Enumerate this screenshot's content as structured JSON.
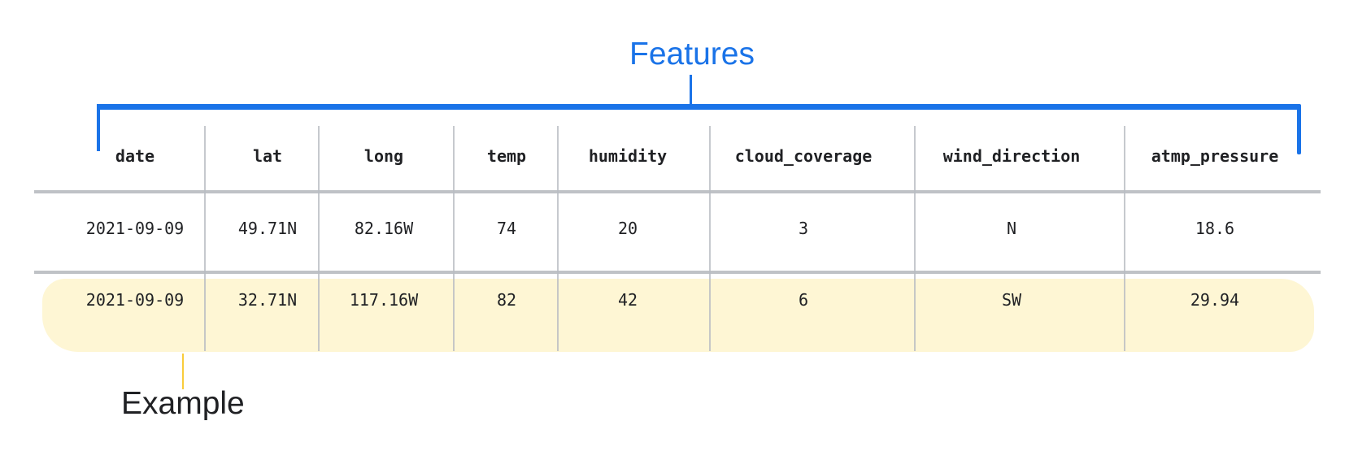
{
  "labels": {
    "features": "Features",
    "example": "Example"
  },
  "colors": {
    "features_bracket": "#1a73e8",
    "example_highlight": "#fef6d4",
    "example_pointer": "#f9cc3b",
    "grid": "#b4b7bc"
  },
  "table": {
    "headers": [
      "date",
      "lat",
      "long",
      "temp",
      "humidity",
      "cloud_coverage",
      "wind_direction",
      "atmp_pressure"
    ],
    "rows": [
      [
        "2021-09-09",
        "49.71N",
        "82.16W",
        "74",
        "20",
        "3",
        "N",
        "18.6"
      ],
      [
        "2021-09-09",
        "32.71N",
        "117.16W",
        "82",
        "42",
        "6",
        "SW",
        "29.94"
      ]
    ],
    "highlighted_row": 1
  }
}
